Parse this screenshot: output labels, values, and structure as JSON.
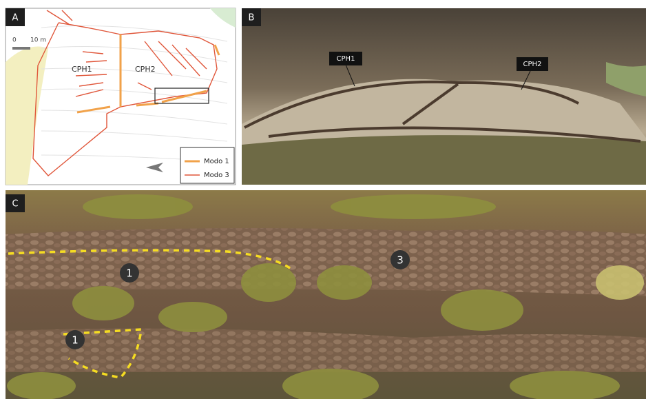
{
  "panel_a": {
    "label": "A",
    "scale_start": "0",
    "scale_end": "10 m",
    "sites": [
      "CPH1",
      "CPH2"
    ],
    "legend": [
      "Modo 1",
      "Modo 3"
    ]
  },
  "panel_b": {
    "label": "B",
    "callouts": [
      "CPH1",
      "CPH2"
    ]
  },
  "panel_c": {
    "label": "C",
    "markers": [
      "1",
      "3",
      "1"
    ]
  }
}
